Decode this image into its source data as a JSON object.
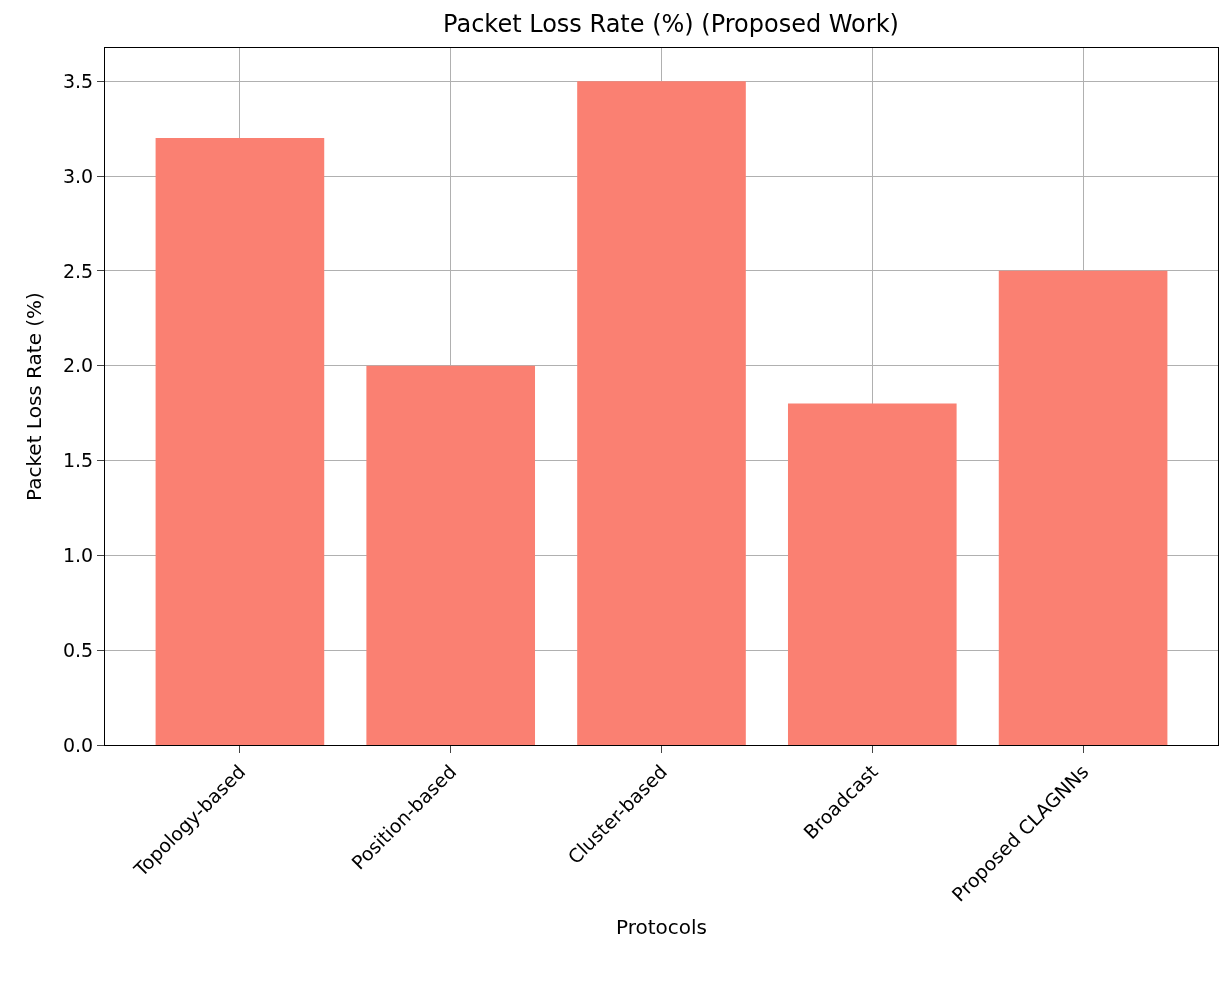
{
  "chart_data": {
    "type": "bar",
    "title": "Packet Loss Rate (%) (Proposed Work)",
    "xlabel": "Protocols",
    "ylabel": "Packet Loss Rate (%)",
    "categories": [
      "Topology-based",
      "Position-based",
      "Cluster-based",
      "Broadcast",
      "Proposed CLAGNNs"
    ],
    "values": [
      3.2,
      2.0,
      3.5,
      1.8,
      2.5
    ],
    "color": "#fa8072",
    "ylim": [
      0,
      3.675
    ],
    "yticks": [
      {
        "value": 0,
        "label": "0.0"
      },
      0.5,
      {
        "value": 1,
        "label": "1.0"
      },
      1.5,
      {
        "value": 2,
        "label": "2.0"
      },
      2.5,
      {
        "value": 3,
        "label": "3.0"
      },
      3.5
    ],
    "grid": true
  }
}
